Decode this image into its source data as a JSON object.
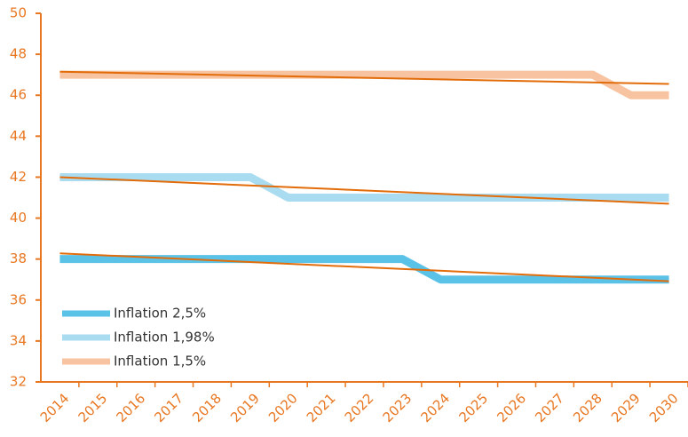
{
  "chart_data": {
    "type": "line",
    "categories": [
      "2014",
      "2015",
      "2016",
      "2017",
      "2018",
      "2019",
      "2020",
      "2021",
      "2022",
      "2023",
      "2024",
      "2025",
      "2026",
      "2027",
      "2028",
      "2029",
      "2030"
    ],
    "series": [
      {
        "name": "Inflation 2,5%",
        "color": "#5bc2e7",
        "values": [
          38,
          38,
          38,
          38,
          38,
          38,
          38,
          38,
          38,
          38,
          37,
          37,
          37,
          37,
          37,
          37,
          37
        ]
      },
      {
        "name": "Inflation 1,98%",
        "color": "#a9dcf0",
        "values": [
          42,
          42,
          42,
          42,
          42,
          42,
          41,
          41,
          41,
          41,
          41,
          41,
          41,
          41,
          41,
          41,
          41
        ]
      },
      {
        "name": "Inflation 1,5%",
        "color": "#f8c3a0",
        "values": [
          47,
          47,
          47,
          47,
          47,
          47,
          47,
          47,
          47,
          47,
          47,
          47,
          47,
          47,
          47,
          46,
          46
        ]
      }
    ],
    "trend_lines": [
      {
        "color": "#e36c0a",
        "values": [
          38.28,
          36.92
        ]
      },
      {
        "color": "#e36c0a",
        "values": [
          42.0,
          40.7
        ]
      },
      {
        "color": "#e36c0a",
        "values": [
          47.15,
          46.55
        ]
      }
    ],
    "ylim": [
      32,
      50
    ],
    "yticks": [
      32,
      34,
      36,
      38,
      40,
      42,
      44,
      46,
      48,
      50
    ],
    "axis_color": "#e87722",
    "legend": "lower left"
  }
}
